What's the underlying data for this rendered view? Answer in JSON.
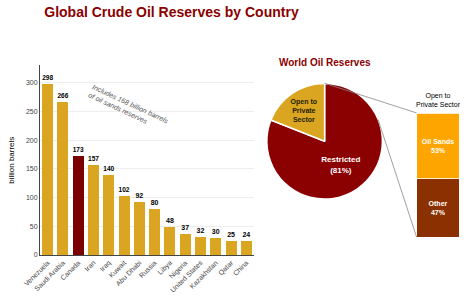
{
  "chart_data": [
    {
      "type": "bar",
      "title": "Global Crude Oil Reserves by Country",
      "categories": [
        "Venezuela",
        "Saudi Arabia",
        "Canada",
        "Iran",
        "Iraq",
        "Kuwait",
        "Abu Dhabi",
        "Russia",
        "Libya",
        "Nigeria",
        "United States",
        "Kazakhstan",
        "Qatar",
        "China"
      ],
      "values": [
        298,
        266,
        173,
        157,
        140,
        102,
        92,
        80,
        48,
        37,
        32,
        30,
        25,
        24
      ],
      "colors": [
        "#DAA520",
        "#DAA520",
        "#7B0000",
        "#DAA520",
        "#DAA520",
        "#DAA520",
        "#DAA520",
        "#DAA520",
        "#DAA520",
        "#DAA520",
        "#DAA520",
        "#DAA520",
        "#DAA520",
        "#DAA520"
      ],
      "ylabel": "billion barrels",
      "ylim": [
        0,
        330
      ],
      "yticks": [
        0,
        50,
        100,
        150,
        200,
        250,
        300
      ],
      "data_labels": true,
      "annotation": "Includes 168 billion barrels\nof oil sands reserves"
    },
    {
      "type": "pie",
      "title": "World Oil Reserves",
      "values": [
        81,
        19
      ],
      "value_labels": [
        "Restricted\n(81%)",
        "Open to\nPrivate\nSector"
      ],
      "colors": [
        "#8B0000",
        "#DAA520"
      ]
    },
    {
      "type": "bar",
      "title": "Open to\nPrivate Sector",
      "stacked": true,
      "categories": [
        null
      ],
      "ylim": [
        0,
        115
      ],
      "tick_labels": false,
      "series": [
        {
          "name": "Other",
          "color": "#8B3000",
          "values": [
            47
          ],
          "value_labels": [
            "Other\n47%"
          ]
        },
        {
          "name": "Oil Sands",
          "color": "#FFA500",
          "values": [
            53
          ],
          "value_labels": [
            "Oil Sands\n53%"
          ]
        }
      ]
    }
  ]
}
